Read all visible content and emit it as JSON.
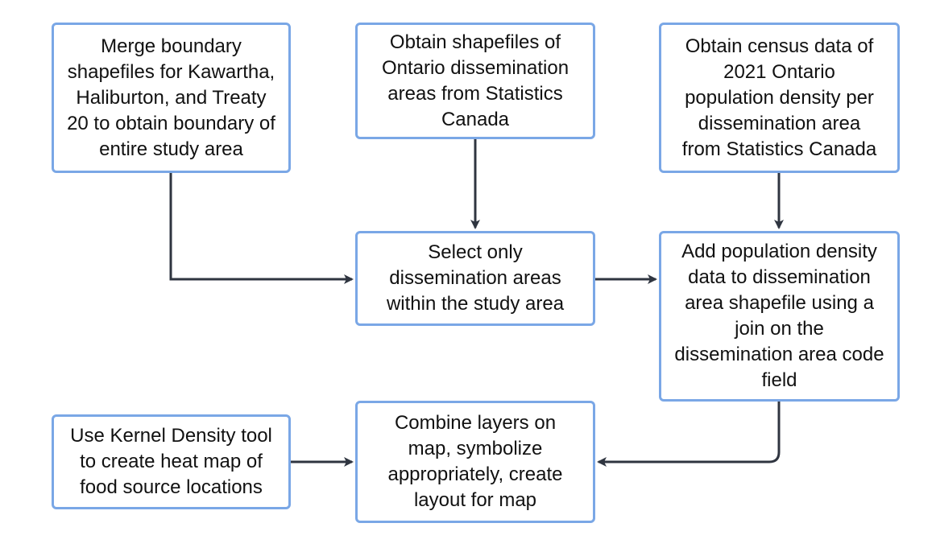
{
  "nodes": {
    "merge": "Merge boundary\nshapefiles for Kawartha,\nHaliburton, and Treaty\n20 to obtain boundary of\nentire study area",
    "shapefiles": "Obtain shapefiles of\nOntario dissemination\nareas from Statistics\nCanada",
    "census": "Obtain census data of\n2021 Ontario\npopulation density per\ndissemination area\nfrom Statistics Canada",
    "select": "Select only\ndissemination areas\nwithin the study area",
    "add": "Add population density\ndata to dissemination\narea shapefile using a\njoin on the\ndissemination area code\nfield",
    "kernel": "Use Kernel Density tool\nto create heat map of\nfood source locations",
    "combine": "Combine layers on\nmap, symbolize\nappropriately, create\nlayout for map"
  },
  "colors": {
    "box_border": "#7aa7e6",
    "arrow": "#2f3540",
    "text": "#111111"
  }
}
